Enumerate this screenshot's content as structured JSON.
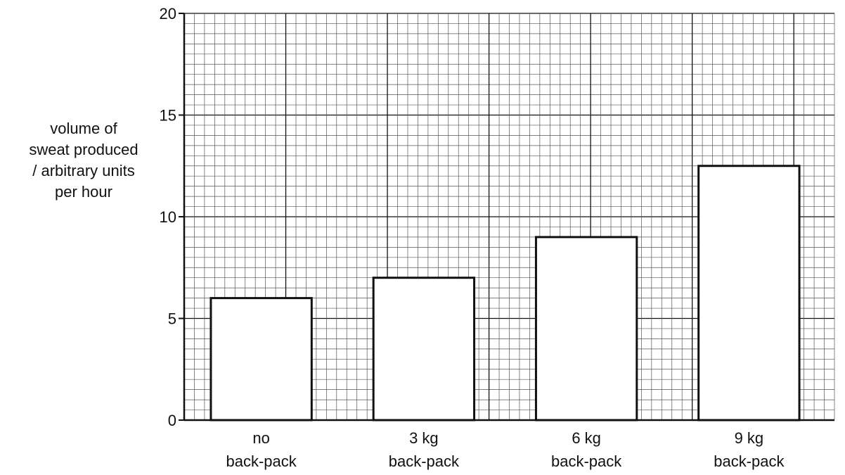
{
  "chart_data": {
    "type": "bar",
    "title": "",
    "xlabel": "",
    "ylabel_lines": [
      "volume of",
      "sweat produced",
      "/ arbitrary units",
      "per hour"
    ],
    "categories": [
      [
        "no",
        "back-pack"
      ],
      [
        "3 kg",
        "back-pack"
      ],
      [
        "6 kg",
        "back-pack"
      ],
      [
        "9 kg",
        "back-pack"
      ]
    ],
    "values": [
      6,
      7,
      9,
      12.5
    ],
    "ylim": [
      0,
      20
    ],
    "yticks": [
      "0",
      "5",
      "10",
      "15",
      "20"
    ],
    "grid": true,
    "colors": {
      "bar_fill": "#ffffff",
      "bar_stroke": "#111111",
      "grid_minor": "#555555",
      "grid_major": "#111111"
    }
  }
}
